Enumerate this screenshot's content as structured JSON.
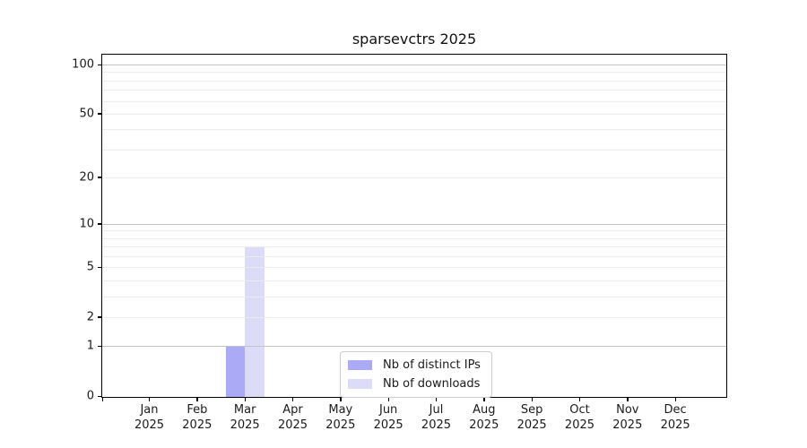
{
  "chart_data": {
    "type": "bar",
    "title": "sparsevctrs 2025",
    "categories": [
      "Jan",
      "Feb",
      "Mar",
      "Apr",
      "May",
      "Jun",
      "Jul",
      "Aug",
      "Sep",
      "Oct",
      "Nov",
      "Dec"
    ],
    "year_label": "2025",
    "series": [
      {
        "name": "Nb of distinct IPs",
        "color": "#aaaaf7",
        "values": [
          0,
          0,
          1,
          0,
          0,
          0,
          0,
          0,
          0,
          0,
          0,
          0
        ]
      },
      {
        "name": "Nb of downloads",
        "color": "#dcdcf9",
        "values": [
          0,
          0,
          7,
          0,
          0,
          0,
          0,
          0,
          0,
          0,
          0,
          0
        ]
      }
    ],
    "xlabel": "",
    "ylabel": "",
    "yaxis": {
      "scale": "log1p",
      "range": [
        0,
        115
      ],
      "tick_labels": [
        0,
        1,
        2,
        5,
        10,
        20,
        50,
        100
      ],
      "major_gridlines": [
        1,
        10,
        100
      ],
      "minor_gridlines": [
        2,
        3,
        4,
        5,
        6,
        7,
        8,
        9,
        20,
        30,
        40,
        50,
        60,
        70,
        80,
        90
      ]
    },
    "legend": {
      "position": "bottom-center",
      "entries": [
        "Nb of distinct IPs",
        "Nb of downloads"
      ]
    },
    "grid": "on"
  }
}
